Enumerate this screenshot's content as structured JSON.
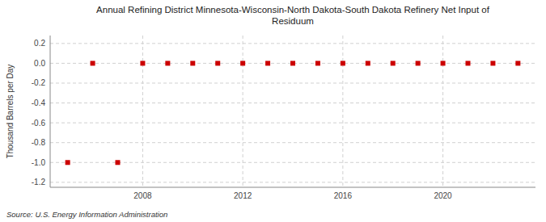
{
  "chart_data": {
    "type": "scatter",
    "title": "Annual Refining District Minnesota-Wisconsin-North Dakota-South Dakota Refinery Net Input of\nResiduum",
    "y_label": "Thousand Barrels per Day",
    "source": "Source: U.S. Energy Information Administration",
    "x": [
      2005,
      2006,
      2007,
      2008,
      2009,
      2010,
      2011,
      2012,
      2013,
      2014,
      2015,
      2016,
      2017,
      2018,
      2019,
      2020,
      2021,
      2022,
      2023
    ],
    "values": [
      -1.0,
      0.0,
      -1.0,
      0.0,
      0.0,
      0.0,
      0.0,
      0.0,
      0.0,
      0.0,
      0.0,
      0.0,
      0.0,
      0.0,
      0.0,
      0.0,
      0.0,
      0.0,
      0.0
    ],
    "color": "#cc0000",
    "marker": "square",
    "xlim": [
      2004.3,
      2023.7
    ],
    "xticks": [
      2008,
      2012,
      2016,
      2020
    ],
    "ylim": [
      -1.25,
      0.28
    ],
    "yticks": [
      0.2,
      {
        "value": 0.0,
        "label": "0.0"
      },
      -0.2,
      -0.4,
      -0.6,
      -0.8,
      {
        "value": -1.0,
        "label": "-1.0"
      },
      -1.2
    ],
    "grid": true
  }
}
